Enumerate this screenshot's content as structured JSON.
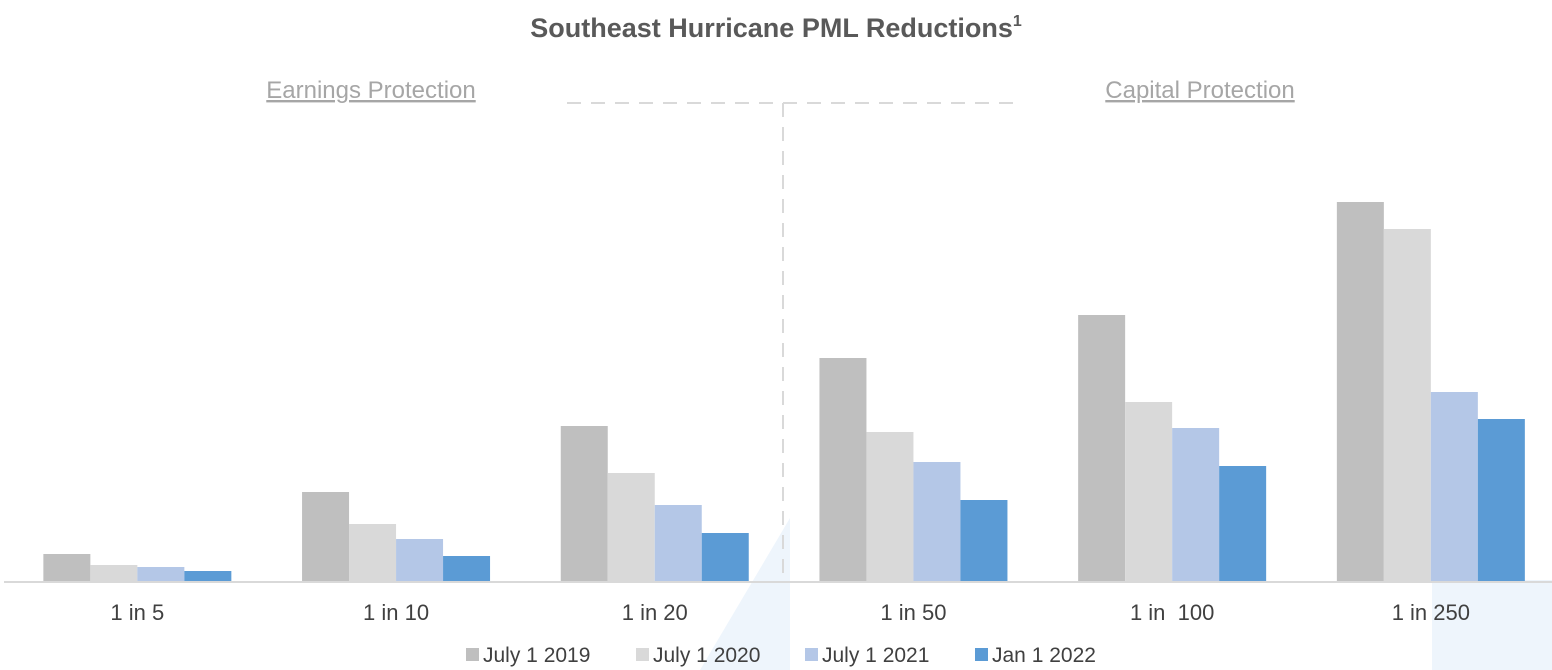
{
  "chart_data": {
    "type": "bar",
    "title": "Southeast Hurricane PML Reductions",
    "title_superscript": "1",
    "sections": [
      {
        "label": "Earnings Protection",
        "categories": [
          "1 in 5",
          "1 in 10",
          "1 in 20"
        ]
      },
      {
        "label": "Capital Protection",
        "categories": [
          "1 in 50",
          "1 in  100",
          "1 in 250"
        ]
      }
    ],
    "categories": [
      "1 in 5",
      "1 in 10",
      "1 in 20",
      "1 in 50",
      "1 in  100",
      "1 in 250"
    ],
    "series": [
      {
        "name": "July 1 2019",
        "color": "#bfbfbf",
        "values": [
          28,
          90,
          156,
          224,
          267,
          380
        ]
      },
      {
        "name": "July 1 2020",
        "color": "#d9d9d9",
        "values": [
          17,
          58,
          109,
          150,
          180,
          353
        ]
      },
      {
        "name": "July 1 2021",
        "color": "#b4c7e7",
        "values": [
          15,
          43,
          77,
          120,
          154,
          190
        ]
      },
      {
        "name": "Jan 1 2022",
        "color": "#5b9bd5",
        "values": [
          11,
          26,
          49,
          82,
          116,
          163
        ]
      }
    ],
    "xlabel": "",
    "ylabel": "",
    "ylim": [
      0,
      400
    ],
    "y_axis_shown": false,
    "grid": false,
    "legend": "bottom-right"
  }
}
